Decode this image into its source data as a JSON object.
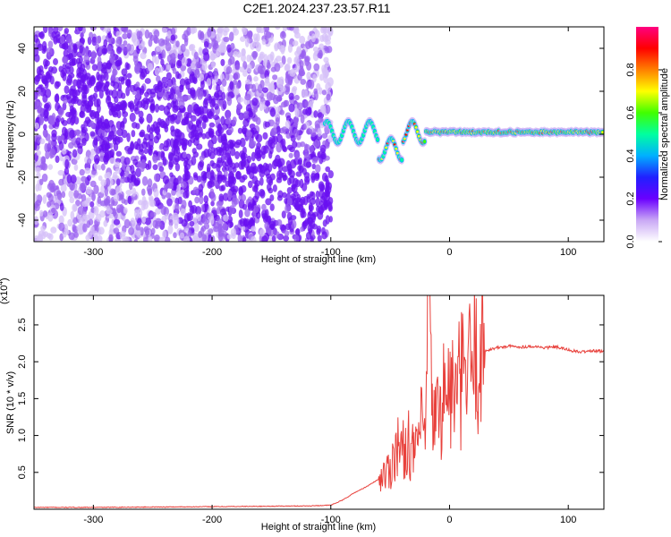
{
  "title": "C2E1.2024.237.23.57.R11",
  "chart_data": [
    {
      "type": "heatmap",
      "xlabel": "Height of straight line (km)",
      "ylabel": "Frequency (Hz)",
      "colorbar_label": "Normalized spectral amplitude",
      "xlim": [
        -350,
        130
      ],
      "ylim": [
        -50,
        50
      ],
      "xticks": [
        -300,
        -200,
        -100,
        0,
        100
      ],
      "yticks": [
        -40,
        -20,
        0,
        20,
        40
      ],
      "colorbar_range": [
        0,
        1
      ],
      "colorbar_ticks": [
        "0.0",
        "0.2",
        "0.4",
        "0.6",
        "0.8"
      ],
      "noise_region_x": [
        -350,
        -100
      ],
      "signal_region_x": [
        -105,
        130
      ],
      "signal_center_frequency": 1,
      "colormap": [
        "#ffffff",
        "#c9a8f5",
        "#6a00ff",
        "#2020ff",
        "#00b0ff",
        "#00ffa0",
        "#40ff00",
        "#ffff00",
        "#ff8000",
        "#ff0000",
        "#ff0080"
      ]
    },
    {
      "type": "line",
      "xlabel": "Height of straight line (km)",
      "ylabel": "SNR (10 * v/v)",
      "y_exponent_label": "(x10",
      "y_exponent": "4",
      "xlim": [
        -350,
        130
      ],
      "ylim": [
        0,
        2.9
      ],
      "xticks": [
        -300,
        -200,
        -100,
        0,
        100
      ],
      "yticks": [
        "0.5",
        "1.0",
        "1.5",
        "2.0",
        "2.5"
      ],
      "series_color": "#e8413c",
      "x": [
        -350,
        -300,
        -200,
        -120,
        -100,
        -90,
        -80,
        -70,
        -60,
        -50,
        -45,
        -40,
        -35,
        -30,
        -25,
        -20,
        -18,
        -15,
        -10,
        -5,
        0,
        5,
        10,
        15,
        20,
        25,
        30,
        40,
        50,
        60,
        70,
        80,
        90,
        100,
        110,
        120,
        130
      ],
      "y": [
        0.02,
        0.02,
        0.03,
        0.04,
        0.05,
        0.12,
        0.22,
        0.3,
        0.4,
        0.55,
        0.9,
        0.75,
        0.95,
        0.7,
        1.1,
        1.0,
        2.9,
        1.35,
        1.25,
        1.55,
        1.6,
        1.55,
        1.75,
        1.85,
        2.0,
        2.1,
        2.15,
        2.19,
        2.21,
        2.2,
        2.21,
        2.19,
        2.2,
        2.16,
        2.13,
        2.15,
        2.14
      ]
    }
  ]
}
